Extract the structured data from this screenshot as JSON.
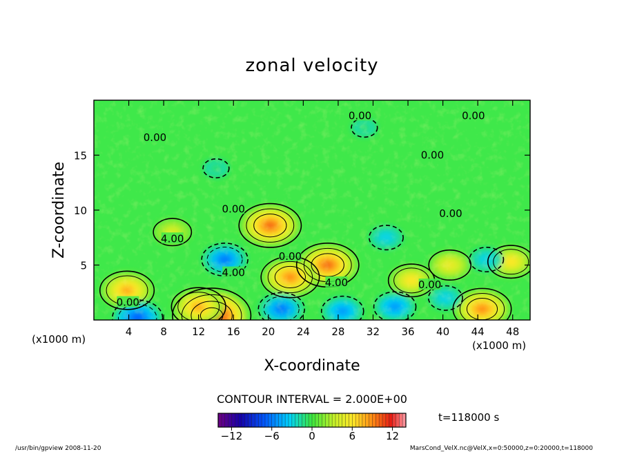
{
  "chart_data": {
    "type": "heatmap",
    "title": "zonal velocity",
    "xlabel": "X-coordinate",
    "ylabel": "Z-coordinate",
    "x_unit": "(x1000 m)",
    "y_unit": "(x1000 m)",
    "x_ticks": [
      4,
      8,
      12,
      16,
      20,
      24,
      28,
      32,
      36,
      40,
      44,
      48
    ],
    "y_ticks": [
      5,
      10,
      15
    ],
    "xlim": [
      0,
      50
    ],
    "ylim": [
      0,
      20
    ],
    "contour_interval_text": "CONTOUR INTERVAL = 2.000E+00",
    "time_text": "t=118000 s",
    "colorbar": {
      "range": [
        -14,
        14
      ],
      "ticks": [
        -12,
        -6,
        0,
        6,
        12
      ],
      "tick_labels": [
        "−12",
        "−6",
        "0",
        "6",
        "12"
      ]
    },
    "contour_labels": [
      {
        "text": "0.00",
        "x": 30.5,
        "y": 18.6
      },
      {
        "text": "0.00",
        "x": 43.5,
        "y": 18.6
      },
      {
        "text": "0.00",
        "x": 7.0,
        "y": 16.6
      },
      {
        "text": "0.00",
        "x": 38.8,
        "y": 15.0
      },
      {
        "text": "0.00",
        "x": 16.0,
        "y": 10.1
      },
      {
        "text": "0.00",
        "x": 40.9,
        "y": 9.7
      },
      {
        "text": "4.00",
        "x": 9.0,
        "y": 7.4
      },
      {
        "text": "0.00",
        "x": 22.5,
        "y": 5.8
      },
      {
        "text": "4.00",
        "x": 16.0,
        "y": 4.3
      },
      {
        "text": "4.00",
        "x": 27.8,
        "y": 3.4
      },
      {
        "text": "0.00",
        "x": 38.5,
        "y": 3.2
      },
      {
        "text": "0.00",
        "x": 3.9,
        "y": 1.6
      }
    ],
    "features": [
      {
        "x": 13.5,
        "y": 0.4,
        "value": 14
      },
      {
        "x": 12.0,
        "y": 1.2,
        "value": 8
      },
      {
        "x": 26.8,
        "y": 5.0,
        "value": 10
      },
      {
        "x": 22.5,
        "y": 3.9,
        "value": 9
      },
      {
        "x": 20.2,
        "y": 8.6,
        "value": 10
      },
      {
        "x": 3.8,
        "y": 2.7,
        "value": 8
      },
      {
        "x": 36.4,
        "y": 3.6,
        "value": 6
      },
      {
        "x": 44.5,
        "y": 1.0,
        "value": 9
      },
      {
        "x": 47.8,
        "y": 5.3,
        "value": 6
      },
      {
        "x": 40.8,
        "y": 5.0,
        "value": 5
      },
      {
        "x": 15.0,
        "y": 5.5,
        "value": -6
      },
      {
        "x": 5.0,
        "y": 0.2,
        "value": -7
      },
      {
        "x": 21.5,
        "y": 1.0,
        "value": -6
      },
      {
        "x": 28.5,
        "y": 0.8,
        "value": -5
      },
      {
        "x": 34.5,
        "y": 1.2,
        "value": -5
      },
      {
        "x": 40.3,
        "y": 2.0,
        "value": -3
      },
      {
        "x": 45.0,
        "y": 5.5,
        "value": -3
      },
      {
        "x": 33.5,
        "y": 7.5,
        "value": -3
      },
      {
        "x": 14.0,
        "y": 13.8,
        "value": -1
      },
      {
        "x": 31.0,
        "y": 17.5,
        "value": -1
      },
      {
        "x": 9.0,
        "y": 8.0,
        "value": 4
      }
    ]
  },
  "footer": {
    "left": "/usr/bin/gpview   2008-11-20",
    "right": "MarsCond_VelX.nc@VelX,x=0:50000,z=0:20000,t=118000"
  }
}
